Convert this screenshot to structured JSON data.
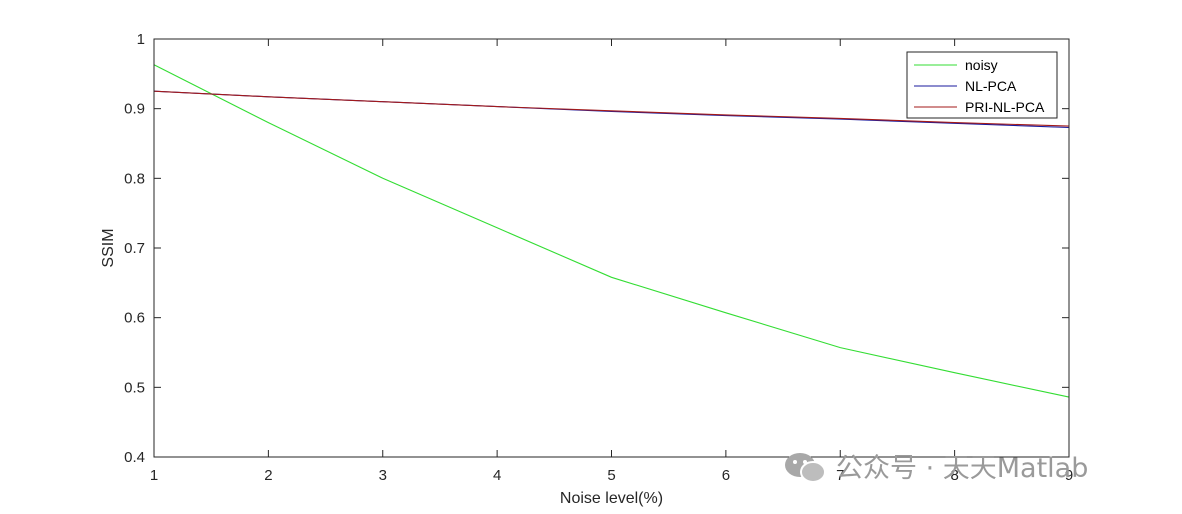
{
  "chart_data": {
    "type": "line",
    "title": "",
    "xlabel": "Noise level(%)",
    "ylabel": "SSIM",
    "xlim": [
      1,
      9
    ],
    "ylim": [
      0.4,
      1
    ],
    "xticks": [
      1,
      2,
      3,
      4,
      5,
      6,
      7,
      8,
      9
    ],
    "yticks": [
      0.4,
      0.5,
      0.6,
      0.7,
      0.8,
      0.9,
      1
    ],
    "ytick_labels": [
      "0.4",
      "0.5",
      "0.6",
      "0.7",
      "0.8",
      "0.9",
      "1"
    ],
    "grid": false,
    "legend_position": "top-right",
    "x": [
      1,
      2,
      3,
      4,
      5,
      6,
      7,
      8,
      9
    ],
    "series": [
      {
        "name": "noisy",
        "color": "#33dd33",
        "values": [
          0.963,
          0.88,
          0.8,
          0.729,
          0.658,
          0.607,
          0.557,
          0.521,
          0.486
        ]
      },
      {
        "name": "NL-PCA",
        "color": "#1a1a9e",
        "values": [
          0.925,
          0.917,
          0.91,
          0.903,
          0.896,
          0.89,
          0.885,
          0.879,
          0.873
        ]
      },
      {
        "name": "PRI-NL-PCA",
        "color": "#a31a1a",
        "values": [
          0.925,
          0.917,
          0.91,
          0.903,
          0.897,
          0.891,
          0.886,
          0.88,
          0.875
        ]
      }
    ]
  },
  "watermark": {
    "text": "公众号 · 天天Matlab",
    "icon": "wechat-icon"
  }
}
